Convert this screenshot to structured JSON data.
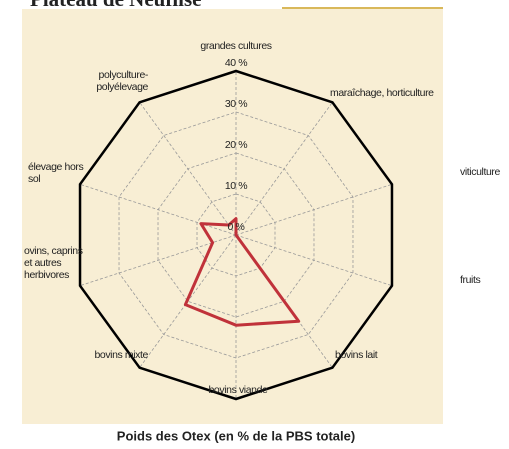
{
  "chart_data": {
    "type": "radar",
    "title": "Plateau de Neuflise",
    "subtitle": "Poids des Otex (en % de la PBS totale)",
    "categories": [
      "grandes cultures",
      "maraîchage, horticulture",
      "viticulture",
      "fruits",
      "bovins lait",
      "bovins viande",
      "bovins mixte",
      "ovins, caprins\net autres\nherbivores",
      "élevage hors\nsol",
      "polyculture-\npolyélevage"
    ],
    "series": [
      {
        "name": "Poids des Otex",
        "color": "#c0323a",
        "values": [
          4,
          0,
          0,
          0,
          26,
          22,
          21,
          6,
          9,
          3
        ]
      }
    ],
    "ylim": [
      0,
      40
    ],
    "yticks": [
      {
        "value": 0,
        "label": "0 %"
      },
      {
        "value": 10,
        "label": "10 %"
      },
      {
        "value": 20,
        "label": "20 %"
      },
      {
        "value": 30,
        "label": "30 %"
      },
      {
        "value": 40,
        "label": "40 %"
      }
    ],
    "grid": true
  }
}
